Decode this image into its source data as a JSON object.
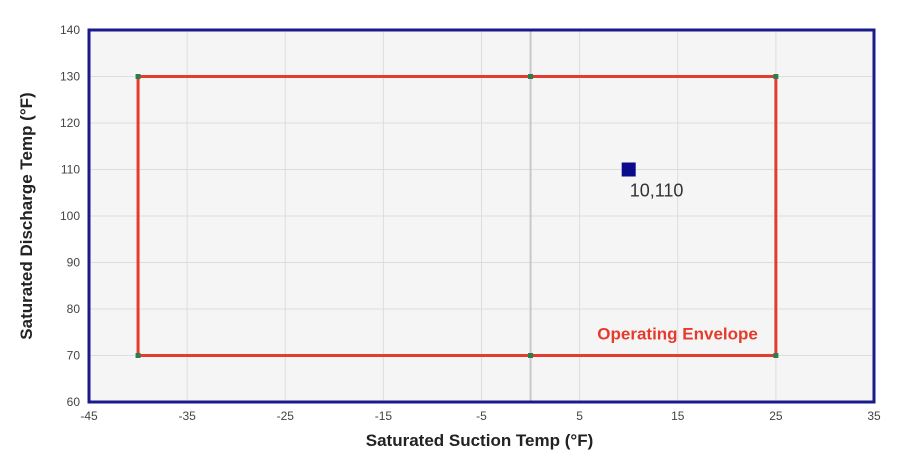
{
  "chart_data": {
    "type": "scatter",
    "title": "",
    "xlabel": "Saturated Suction Temp (°F)",
    "ylabel": "Saturated Discharge Temp (°F)",
    "xlim": [
      -45,
      35
    ],
    "ylim": [
      60,
      140
    ],
    "x_ticks": [
      -45,
      -35,
      -25,
      -15,
      -5,
      5,
      15,
      25,
      35
    ],
    "y_ticks": [
      60,
      70,
      80,
      90,
      100,
      110,
      120,
      130,
      140
    ],
    "grid": true,
    "envelope": {
      "label": "Operating Envelope",
      "color": "#e53b2c",
      "vertex_color": "#2e7d4f",
      "points": [
        {
          "x": -40,
          "y": 130
        },
        {
          "x": 0,
          "y": 130
        },
        {
          "x": 25,
          "y": 130
        },
        {
          "x": 25,
          "y": 70
        },
        {
          "x": 0,
          "y": 70
        },
        {
          "x": -40,
          "y": 70
        }
      ]
    },
    "series": [
      {
        "color": "#0a0a8c",
        "points": [
          {
            "x": 10,
            "y": 110,
            "label": "10,110"
          }
        ]
      }
    ],
    "colors": {
      "frame": "#1a1a8c",
      "plot_background": "#f5f5f5",
      "grid": "#dddddd",
      "zero_line": "#c8c8c8"
    }
  }
}
